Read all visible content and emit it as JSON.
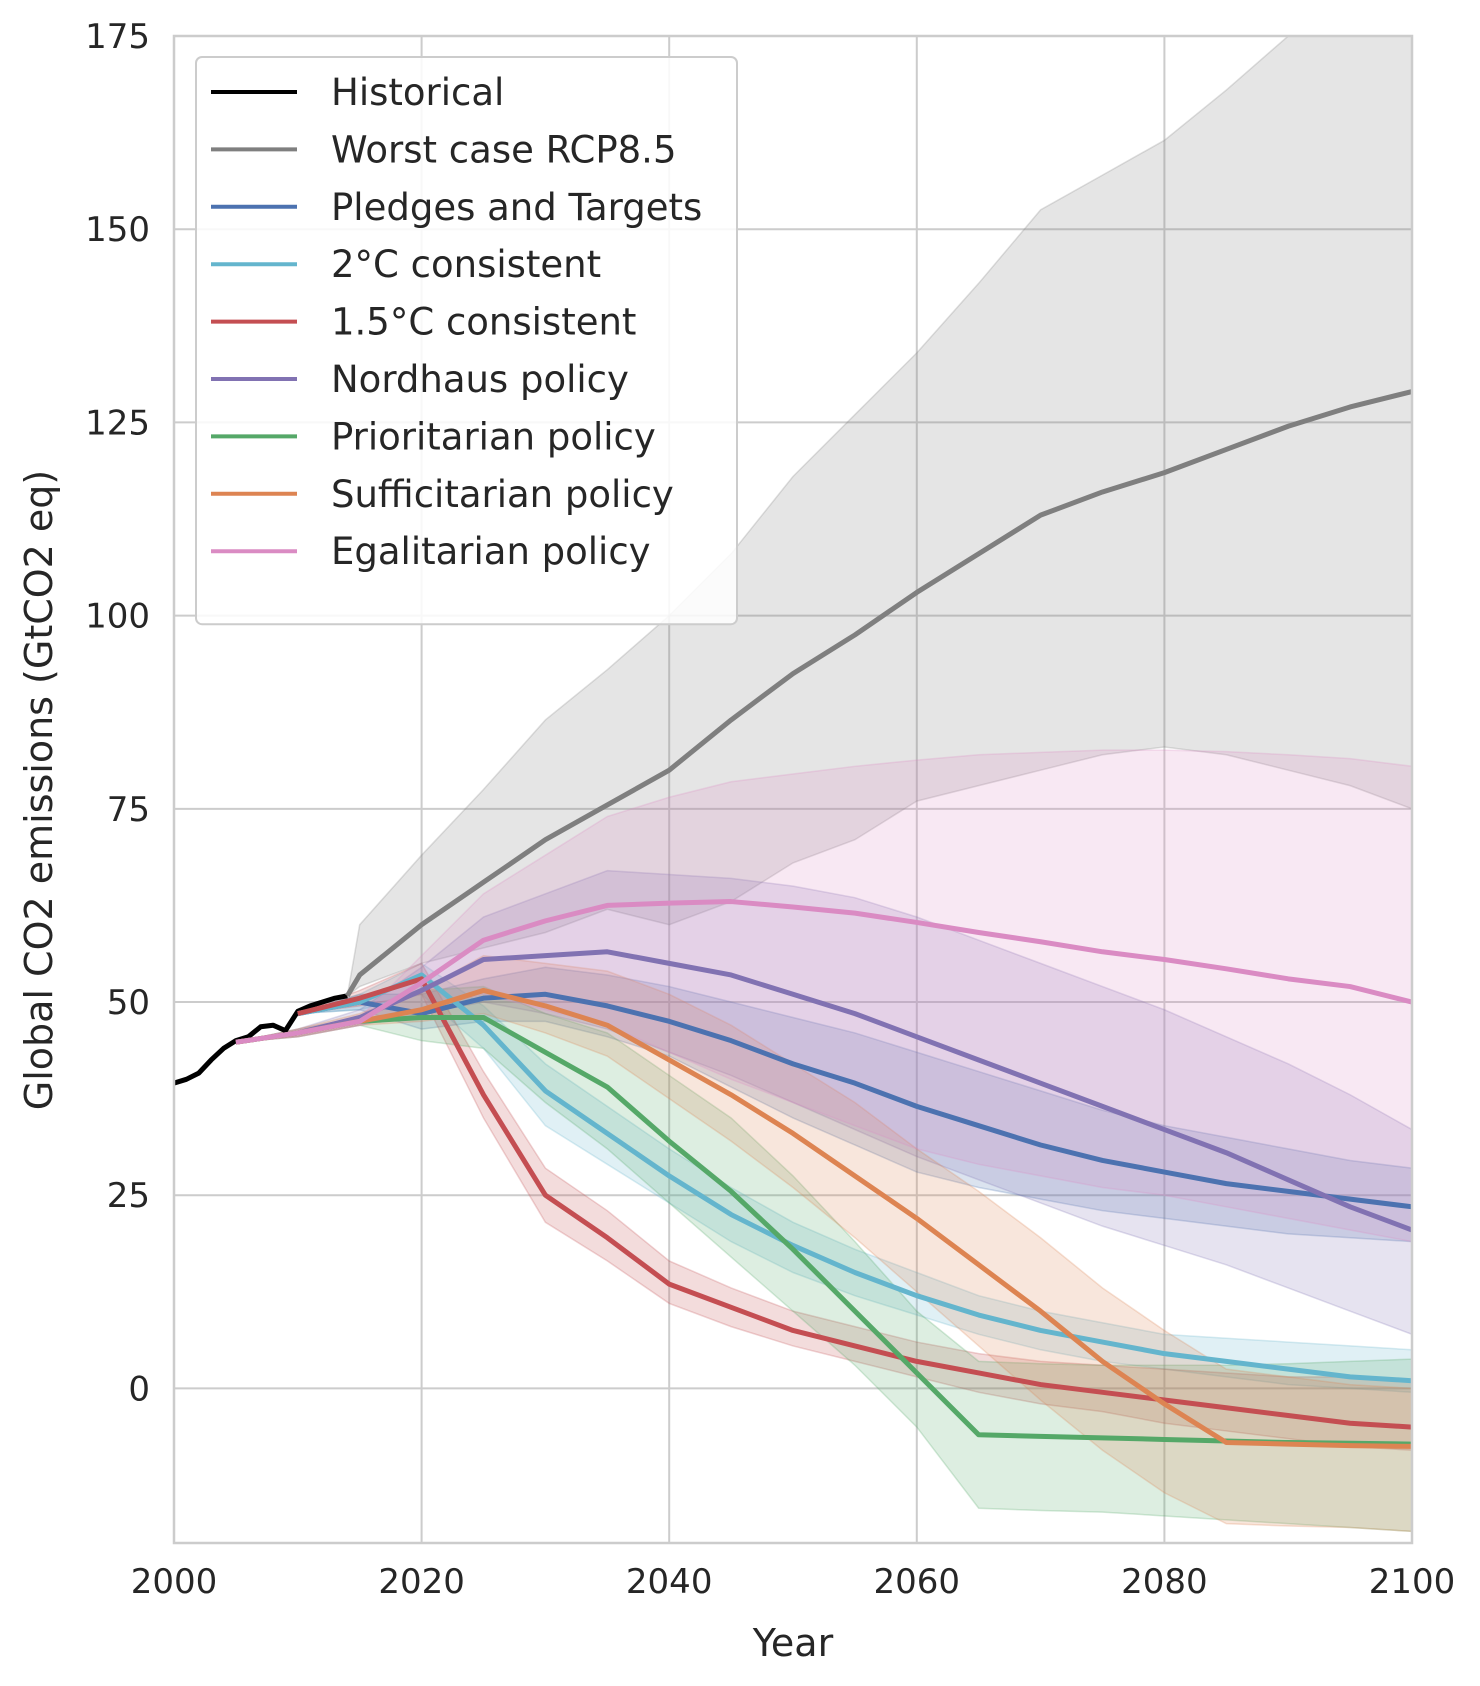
{
  "chart_data": {
    "type": "line",
    "title": "",
    "xlabel": "Year",
    "ylabel": "Global CO2 emissions (GtCO2 eq)",
    "xlim": [
      2000,
      2100
    ],
    "ylim": [
      -20,
      175
    ],
    "xticks": [
      2000,
      2020,
      2040,
      2060,
      2080,
      2100
    ],
    "yticks": [
      0,
      25,
      50,
      75,
      100,
      125,
      150,
      175
    ],
    "grid": true,
    "legend_placement": "upper-left",
    "series": [
      {
        "name": "Historical",
        "color": "#000000",
        "x": [
          2000,
          2001,
          2002,
          2003,
          2004,
          2005,
          2006,
          2007,
          2008,
          2009,
          2010,
          2011,
          2012,
          2013,
          2014
        ],
        "y": [
          39.5,
          40.0,
          40.8,
          42.5,
          44.0,
          45.0,
          45.5,
          46.8,
          47.0,
          46.3,
          48.8,
          49.5,
          50.0,
          50.5,
          50.8
        ]
      },
      {
        "name": "Worst case RCP8.5",
        "color": "#7f7f7f",
        "x": [
          2014,
          2015,
          2020,
          2025,
          2030,
          2035,
          2040,
          2045,
          2050,
          2055,
          2060,
          2065,
          2070,
          2075,
          2080,
          2085,
          2090,
          2095,
          2100
        ],
        "y": [
          50.8,
          53.5,
          60,
          65.5,
          71,
          75.5,
          80,
          86.5,
          92.5,
          97.5,
          103,
          108,
          113,
          116,
          118.5,
          121.5,
          124.5,
          127,
          129
        ],
        "band_low": [
          50.8,
          52,
          55,
          57,
          59,
          62,
          60,
          63,
          68,
          71,
          76,
          78,
          80,
          82,
          83,
          82,
          80,
          78,
          75
        ],
        "band_high": [
          50.8,
          60,
          69,
          77.5,
          86.5,
          93,
          100,
          108,
          118,
          126,
          134,
          143,
          152.5,
          157,
          161.5,
          168,
          175,
          178,
          180
        ]
      },
      {
        "name": "Pledges and Targets",
        "color": "#4c72b0",
        "x": [
          2010,
          2015,
          2020,
          2025,
          2030,
          2035,
          2040,
          2045,
          2050,
          2055,
          2060,
          2065,
          2070,
          2075,
          2080,
          2085,
          2090,
          2095,
          2100
        ],
        "y": [
          48.5,
          50,
          48.5,
          50.5,
          51,
          49.5,
          47.5,
          45,
          42,
          39.5,
          36.5,
          34,
          31.5,
          29.5,
          28,
          26.5,
          25.5,
          24.5,
          23.5
        ],
        "band_low": [
          48.5,
          49,
          46.5,
          47.5,
          47.5,
          45.5,
          43,
          39,
          35,
          31.5,
          28,
          26,
          24.5,
          23,
          22,
          21,
          20,
          19.5,
          19
        ],
        "band_high": [
          48.5,
          51,
          51,
          53,
          54.5,
          53.5,
          52,
          50,
          48,
          46,
          43.5,
          41,
          38.5,
          36,
          34,
          32.5,
          31,
          29.5,
          28.5
        ]
      },
      {
        "name": "2°C consistent",
        "color": "#64b5cd",
        "x": [
          2010,
          2015,
          2020,
          2025,
          2030,
          2035,
          2040,
          2045,
          2050,
          2055,
          2060,
          2065,
          2070,
          2075,
          2080,
          2085,
          2090,
          2095,
          2100
        ],
        "y": [
          48.5,
          50,
          53.5,
          47,
          38.5,
          33,
          27.5,
          22.5,
          18.5,
          15,
          12,
          9.5,
          7.5,
          6,
          4.5,
          3.5,
          2.5,
          1.5,
          1
        ],
        "band_low": [
          48.5,
          49,
          51,
          44,
          34,
          29,
          24,
          19,
          15,
          12,
          9.5,
          7,
          5,
          3.5,
          2.5,
          1.5,
          0.5,
          0,
          -0.5
        ],
        "band_high": [
          48.5,
          51,
          55,
          49.5,
          42,
          36.5,
          31,
          26,
          21.5,
          18,
          15,
          12,
          10,
          8.5,
          7,
          6.5,
          6,
          5.5,
          5
        ]
      },
      {
        "name": "1.5°C consistent",
        "color": "#c44e52",
        "x": [
          2010,
          2015,
          2020,
          2025,
          2030,
          2035,
          2040,
          2045,
          2050,
          2055,
          2060,
          2065,
          2070,
          2075,
          2080,
          2085,
          2090,
          2095,
          2100
        ],
        "y": [
          48.5,
          50.5,
          53,
          38,
          25,
          19.5,
          13.5,
          10.5,
          7.5,
          5.5,
          3.5,
          2,
          0.5,
          -0.5,
          -1.5,
          -2.5,
          -3.5,
          -4.5,
          -5
        ],
        "band_low": [
          48.5,
          49.5,
          51,
          35,
          21.5,
          16.5,
          11,
          8,
          5.5,
          3.5,
          1.5,
          -0.5,
          -2,
          -3,
          -4.5,
          -5.5,
          -6.5,
          -7.5,
          -8
        ],
        "band_high": [
          48.5,
          51.5,
          55,
          41,
          28.5,
          23,
          16.5,
          13,
          10,
          8,
          6,
          4.5,
          3.5,
          3,
          2.5,
          2,
          1.5,
          1.5,
          1
        ]
      },
      {
        "name": "Nordhaus policy",
        "color": "#8172b2",
        "x": [
          2005,
          2010,
          2015,
          2020,
          2025,
          2030,
          2035,
          2040,
          2045,
          2050,
          2055,
          2060,
          2065,
          2070,
          2075,
          2080,
          2085,
          2090,
          2095,
          2100
        ],
        "y": [
          44.8,
          46,
          48,
          51.5,
          55.5,
          56,
          56.5,
          55,
          53.5,
          51,
          48.5,
          45.5,
          42.5,
          39.5,
          36.5,
          33.5,
          30.5,
          27,
          23.5,
          20.5
        ],
        "band_low": [
          44.8,
          45.5,
          47,
          48.5,
          50,
          48.5,
          46.5,
          43.5,
          40.5,
          37,
          33.5,
          30,
          27,
          24,
          21,
          18.5,
          16,
          13,
          10,
          7
        ],
        "band_high": [
          44.8,
          46.5,
          49,
          54.5,
          61,
          64,
          67,
          66.5,
          66,
          65,
          63.5,
          61,
          58,
          55,
          52,
          49,
          45.5,
          42,
          38,
          33.5
        ]
      },
      {
        "name": "Prioritarian policy",
        "color": "#55a868",
        "x": [
          2005,
          2010,
          2015,
          2020,
          2025,
          2030,
          2035,
          2040,
          2045,
          2050,
          2055,
          2060,
          2065,
          2070,
          2075,
          2080,
          2085,
          2090,
          2095,
          2100
        ],
        "y": [
          44.8,
          46,
          47.5,
          48,
          48,
          43.5,
          39,
          32,
          25.5,
          18,
          10,
          2,
          -6,
          -6.2,
          -6.4,
          -6.6,
          -6.8,
          -7,
          -7.1,
          -7.2
        ],
        "band_low": [
          44.8,
          45.5,
          47,
          45,
          44,
          37,
          31,
          24,
          17,
          10,
          3,
          -5,
          -15.5,
          -15.8,
          -16,
          -16.5,
          -17,
          -17.5,
          -18,
          -18.5
        ],
        "band_high": [
          44.8,
          46.5,
          48,
          51.5,
          52,
          48.5,
          46,
          40.5,
          35,
          27.5,
          19,
          10,
          3.5,
          3.2,
          3,
          3,
          3,
          3.2,
          3.5,
          3.8
        ]
      },
      {
        "name": "Sufficitarian policy",
        "color": "#dd8452",
        "x": [
          2005,
          2010,
          2015,
          2020,
          2025,
          2030,
          2035,
          2040,
          2045,
          2050,
          2055,
          2060,
          2065,
          2070,
          2075,
          2080,
          2085,
          2090,
          2095,
          2100
        ],
        "y": [
          44.8,
          46,
          47.5,
          49,
          51.5,
          49.5,
          47,
          42.5,
          38,
          33,
          27.5,
          22,
          16,
          10,
          3.5,
          -2,
          -7,
          -7.2,
          -7.4,
          -7.5
        ],
        "band_low": [
          44.8,
          45.5,
          47,
          47.5,
          48.5,
          46,
          43,
          37.5,
          32,
          26,
          19.5,
          12.5,
          5.5,
          -1.5,
          -8,
          -13.5,
          -17.5,
          -17.8,
          -18,
          -18.5
        ],
        "band_high": [
          44.8,
          46.5,
          48.5,
          51.5,
          56,
          55,
          54,
          51,
          47,
          42,
          37,
          31,
          25.5,
          19.5,
          13,
          7.5,
          2.5,
          1.5,
          0.5,
          0
        ]
      },
      {
        "name": "Egalitarian policy",
        "color": "#da8bc3",
        "x": [
          2005,
          2010,
          2015,
          2020,
          2025,
          2030,
          2035,
          2040,
          2045,
          2050,
          2055,
          2060,
          2065,
          2070,
          2075,
          2080,
          2085,
          2090,
          2095,
          2100
        ],
        "y": [
          44.8,
          46,
          47.5,
          52.5,
          58,
          60.5,
          62.5,
          62.8,
          63,
          62.3,
          61.5,
          60.3,
          59,
          57.8,
          56.5,
          55.5,
          54.3,
          53,
          52,
          50
        ],
        "band_low": [
          44.8,
          45.5,
          47,
          49,
          51,
          49,
          47,
          43.5,
          40,
          37,
          34,
          31,
          29,
          27.5,
          26,
          25,
          23.5,
          22,
          20.5,
          19
        ],
        "band_high": [
          44.8,
          46.5,
          48,
          56,
          64,
          69,
          74,
          76.5,
          78.5,
          79.5,
          80.5,
          81.3,
          82,
          82.3,
          82.6,
          82.6,
          82.4,
          82,
          81.5,
          80.5
        ]
      }
    ]
  }
}
